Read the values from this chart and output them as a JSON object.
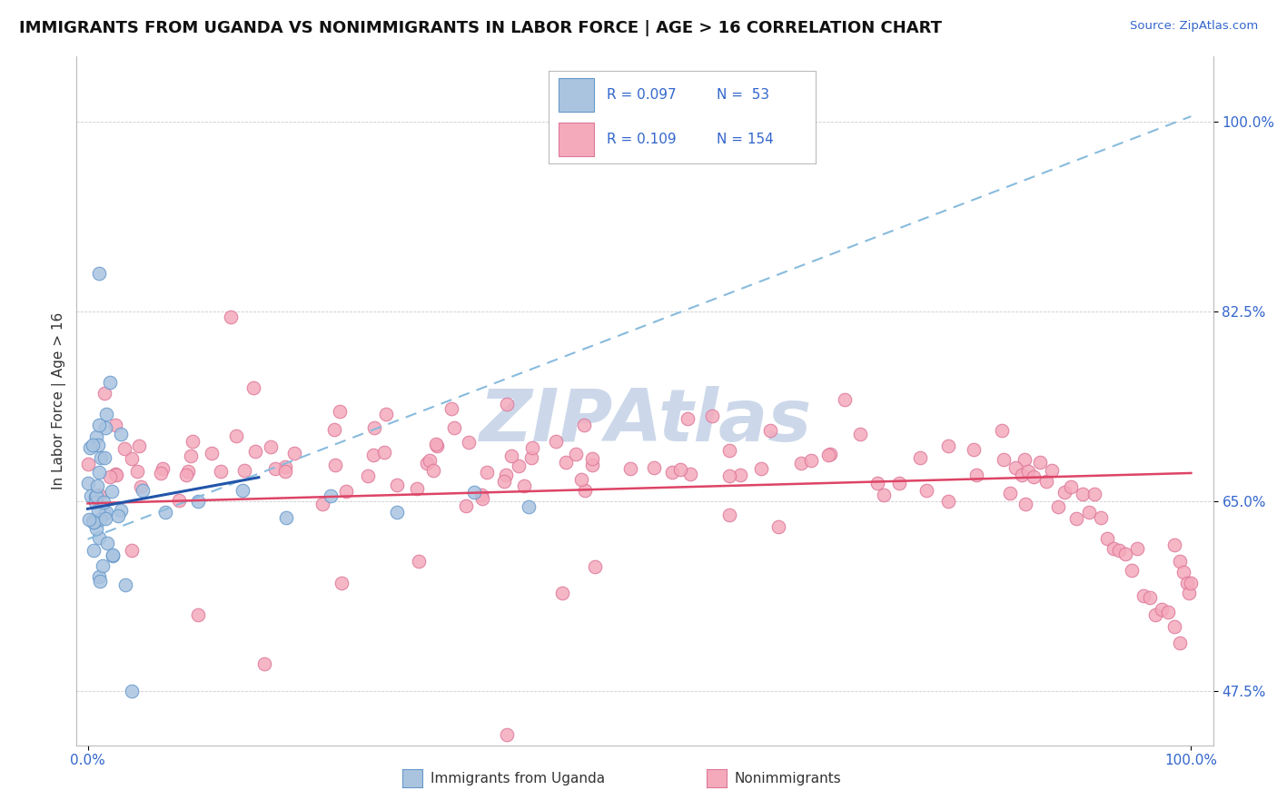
{
  "title": "IMMIGRANTS FROM UGANDA VS NONIMMIGRANTS IN LABOR FORCE | AGE > 16 CORRELATION CHART",
  "source": "Source: ZipAtlas.com",
  "ylabel": "In Labor Force | Age > 16",
  "y_ticks": [
    0.475,
    0.65,
    0.825,
    1.0
  ],
  "y_tick_labels": [
    "47.5%",
    "65.0%",
    "82.5%",
    "100.0%"
  ],
  "xlim": [
    -0.01,
    1.02
  ],
  "ylim": [
    0.425,
    1.06
  ],
  "blue_color": "#aac4e0",
  "blue_edge": "#6699cc",
  "pink_color": "#f4aabb",
  "pink_edge": "#dd7799",
  "trend_blue_solid": "#2255aa",
  "trend_blue_dash": "#88bbdd",
  "trend_pink": "#dd4466",
  "watermark_color": "#ccd8ea",
  "background_color": "#ffffff",
  "grid_color": "#cccccc"
}
